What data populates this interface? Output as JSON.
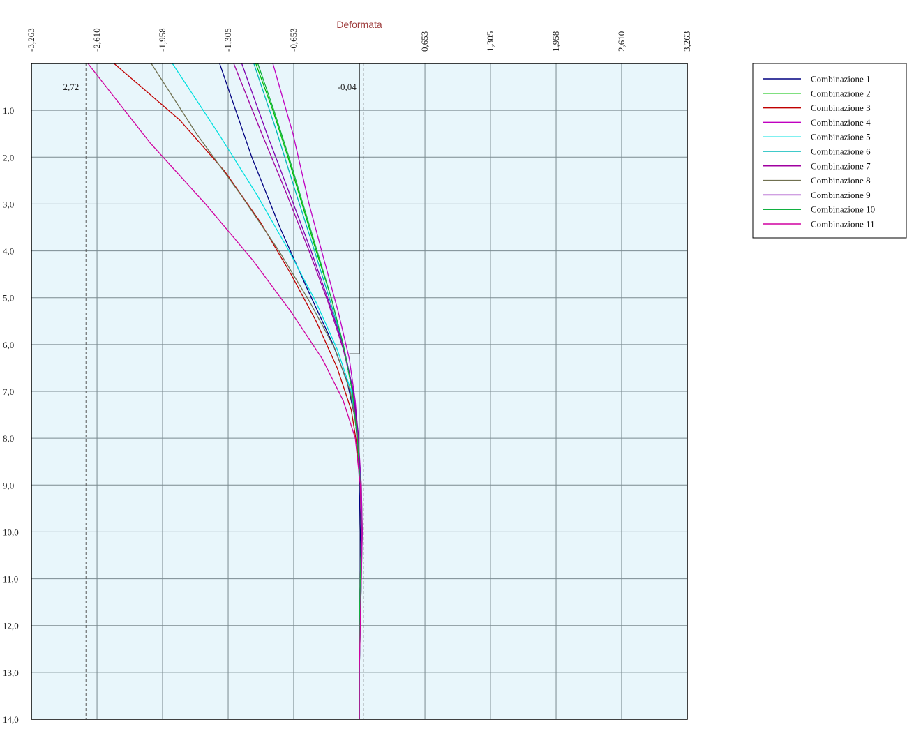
{
  "chart_data": {
    "type": "line",
    "title": "Deformata",
    "x_ticks": [
      "-3,263",
      "-2,610",
      "-1,958",
      "-1,305",
      "-0,653",
      "0,653",
      "1,305",
      "1,958",
      "2,610",
      "3,263"
    ],
    "x_tick_values": [
      -3.263,
      -2.61,
      -1.958,
      -1.305,
      -0.653,
      0.653,
      1.305,
      1.958,
      2.61,
      3.263
    ],
    "xlim": [
      -3.263,
      3.263
    ],
    "y_ticks": [
      "1,0",
      "2,0",
      "3,0",
      "4,0",
      "5,0",
      "6,0",
      "7,0",
      "8,0",
      "9,0",
      "10,0",
      "11,0",
      "12,0",
      "13,0",
      "14,0"
    ],
    "y_tick_values": [
      1,
      2,
      3,
      4,
      5,
      6,
      7,
      8,
      9,
      10,
      11,
      12,
      13,
      14
    ],
    "ylim": [
      0,
      14
    ],
    "y_inverted": true,
    "grid": true,
    "legend_position": "right",
    "annotations": [
      {
        "text": "2,72",
        "x": -2.72
      },
      {
        "text": "-0,04",
        "x": 0.04
      }
    ],
    "reference_lines": [
      {
        "x": -2.72,
        "style": "dashed"
      },
      {
        "x": 0.04,
        "style": "dashed"
      }
    ],
    "marker": {
      "x": 0.0,
      "y0": 0,
      "y1": 6.2,
      "x_end": -0.1
    },
    "series": [
      {
        "name": "Combinazione 1",
        "color": "#000080",
        "points": [
          [
            -1.39,
            0
          ],
          [
            -1.07,
            2
          ],
          [
            -0.79,
            3.5
          ],
          [
            -0.52,
            4.8
          ],
          [
            -0.26,
            6
          ],
          [
            -0.12,
            6.8
          ],
          [
            -0.04,
            7.6
          ],
          [
            -0.01,
            8.3
          ],
          [
            0,
            9
          ],
          [
            0.01,
            10
          ],
          [
            0.01,
            11
          ],
          [
            0,
            12
          ],
          [
            0,
            13
          ],
          [
            0,
            14
          ]
        ]
      },
      {
        "name": "Combinazione 2",
        "color": "#00c000",
        "points": [
          [
            -1.03,
            0
          ],
          [
            -0.86,
            1
          ],
          [
            -0.71,
            2
          ],
          [
            -0.57,
            3
          ],
          [
            -0.43,
            4
          ],
          [
            -0.28,
            5
          ],
          [
            -0.16,
            6
          ],
          [
            -0.07,
            7
          ],
          [
            -0.02,
            8
          ],
          [
            0.02,
            9
          ],
          [
            0.03,
            10
          ],
          [
            0.02,
            11
          ],
          [
            0.01,
            12
          ],
          [
            0,
            13
          ],
          [
            0,
            14
          ]
        ]
      },
      {
        "name": "Combinazione 3",
        "color": "#c00000",
        "points": [
          [
            -2.44,
            0
          ],
          [
            -1.79,
            1.2
          ],
          [
            -1.34,
            2.3
          ],
          [
            -0.98,
            3.4
          ],
          [
            -0.68,
            4.5
          ],
          [
            -0.43,
            5.5
          ],
          [
            -0.22,
            6.5
          ],
          [
            -0.08,
            7.4
          ],
          [
            -0.02,
            8.2
          ],
          [
            0.01,
            9
          ],
          [
            0.02,
            10
          ],
          [
            0.01,
            11
          ],
          [
            0,
            12
          ],
          [
            0,
            13
          ],
          [
            0,
            14
          ]
        ]
      },
      {
        "name": "Combinazione 4",
        "color": "#c000c0",
        "points": [
          [
            -0.86,
            0
          ],
          [
            -0.66,
            1.5
          ],
          [
            -0.5,
            3
          ],
          [
            -0.35,
            4.2
          ],
          [
            -0.21,
            5.3
          ],
          [
            -0.1,
            6.3
          ],
          [
            -0.04,
            7.2
          ],
          [
            -0.01,
            8
          ],
          [
            0.02,
            9
          ],
          [
            0.03,
            10
          ],
          [
            0.02,
            11
          ],
          [
            0.01,
            12
          ],
          [
            0,
            13
          ],
          [
            0,
            14
          ]
        ]
      },
      {
        "name": "Combinazione 5",
        "color": "#00e0e0",
        "points": [
          [
            -1.86,
            0
          ],
          [
            -1.4,
            1.5
          ],
          [
            -1.02,
            2.8
          ],
          [
            -0.7,
            4
          ],
          [
            -0.43,
            5.1
          ],
          [
            -0.22,
            6.1
          ],
          [
            -0.08,
            7
          ],
          [
            -0.02,
            7.9
          ],
          [
            0.01,
            9
          ],
          [
            0.02,
            10
          ],
          [
            0.01,
            11
          ],
          [
            0,
            12
          ],
          [
            0,
            13
          ],
          [
            0,
            14
          ]
        ]
      },
      {
        "name": "Combinazione 6",
        "color": "#00b8b8",
        "points": [
          [
            -1.05,
            0
          ],
          [
            -0.83,
            1.4
          ],
          [
            -0.64,
            2.7
          ],
          [
            -0.46,
            3.9
          ],
          [
            -0.3,
            5
          ],
          [
            -0.16,
            6
          ],
          [
            -0.07,
            6.9
          ],
          [
            -0.02,
            7.8
          ],
          [
            0.01,
            8.8
          ],
          [
            0.02,
            10
          ],
          [
            0.02,
            11
          ],
          [
            0.01,
            12
          ],
          [
            0,
            13
          ],
          [
            0,
            14
          ]
        ]
      },
      {
        "name": "Combinazione 7",
        "color": "#a000a0",
        "points": [
          [
            -1.25,
            0
          ],
          [
            -0.97,
            1.5
          ],
          [
            -0.72,
            2.8
          ],
          [
            -0.5,
            4
          ],
          [
            -0.31,
            5.1
          ],
          [
            -0.16,
            6.1
          ],
          [
            -0.06,
            7
          ],
          [
            -0.02,
            7.9
          ],
          [
            0.01,
            8.9
          ],
          [
            0.02,
            10
          ],
          [
            0.02,
            11
          ],
          [
            0,
            12
          ],
          [
            0,
            13
          ],
          [
            0,
            14
          ]
        ]
      },
      {
        "name": "Combinazione 8",
        "color": "#707050",
        "points": [
          [
            -2.07,
            0
          ],
          [
            -1.62,
            1.5
          ],
          [
            -1.18,
            2.8
          ],
          [
            -0.8,
            4
          ],
          [
            -0.49,
            5.1
          ],
          [
            -0.24,
            6.1
          ],
          [
            -0.09,
            7
          ],
          [
            -0.02,
            7.9
          ],
          [
            0.01,
            9
          ],
          [
            0.02,
            10
          ],
          [
            0.01,
            11
          ],
          [
            0,
            12
          ],
          [
            0,
            13
          ],
          [
            0,
            14
          ]
        ]
      },
      {
        "name": "Combinazione 9",
        "color": "#8000b0",
        "points": [
          [
            -1.17,
            0
          ],
          [
            -0.92,
            1.5
          ],
          [
            -0.69,
            2.8
          ],
          [
            -0.48,
            4
          ],
          [
            -0.3,
            5.1
          ],
          [
            -0.15,
            6.1
          ],
          [
            -0.06,
            7
          ],
          [
            -0.01,
            7.9
          ],
          [
            0.01,
            8.9
          ],
          [
            0.02,
            10
          ],
          [
            0.01,
            11
          ],
          [
            0,
            12
          ],
          [
            0,
            13
          ],
          [
            0,
            14
          ]
        ]
      },
      {
        "name": "Combinazione 10",
        "color": "#10b040",
        "points": [
          [
            -1.01,
            0
          ],
          [
            -0.85,
            1
          ],
          [
            -0.7,
            2
          ],
          [
            -0.56,
            3
          ],
          [
            -0.42,
            4
          ],
          [
            -0.28,
            5
          ],
          [
            -0.16,
            6
          ],
          [
            -0.07,
            7
          ],
          [
            -0.02,
            8
          ],
          [
            0.01,
            9
          ],
          [
            0.02,
            10
          ],
          [
            0.01,
            11
          ],
          [
            0,
            12
          ],
          [
            0,
            13
          ],
          [
            0,
            14
          ]
        ]
      },
      {
        "name": "Combinazione 11",
        "color": "#d000a0",
        "points": [
          [
            -2.7,
            0
          ],
          [
            -2.08,
            1.7
          ],
          [
            -1.53,
            3
          ],
          [
            -1.06,
            4.2
          ],
          [
            -0.68,
            5.3
          ],
          [
            -0.37,
            6.3
          ],
          [
            -0.16,
            7.2
          ],
          [
            -0.04,
            8
          ],
          [
            0.01,
            9
          ],
          [
            0.02,
            10
          ],
          [
            0.02,
            11
          ],
          [
            0.01,
            12
          ],
          [
            0,
            13
          ],
          [
            0,
            14
          ]
        ]
      }
    ]
  }
}
